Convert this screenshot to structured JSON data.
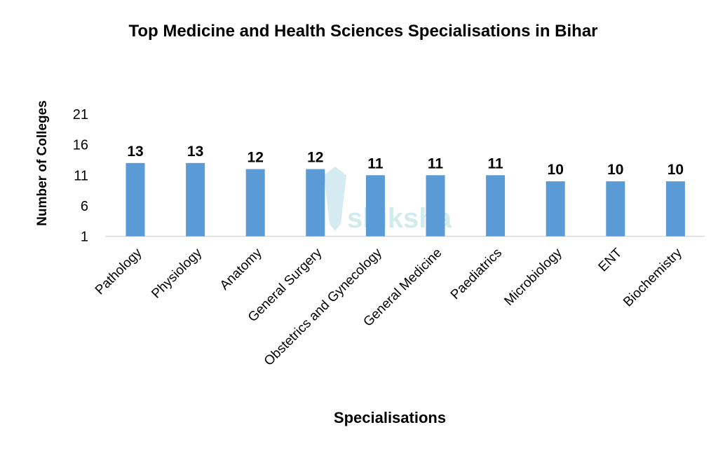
{
  "chart_data": {
    "type": "bar",
    "title": "Top Medicine and Health Sciences Specialisations in Bihar",
    "xlabel": "Specialisations",
    "ylabel": "Number of Colleges",
    "categories": [
      "Pathology",
      "Physiology",
      "Anatomy",
      "General Surgery",
      "Obstetrics and Gynecology",
      "General Medicine",
      "Paediatrics",
      "Microbiology",
      "ENT",
      "Biochemistry"
    ],
    "values": [
      13,
      13,
      12,
      12,
      11,
      11,
      11,
      10,
      10,
      10
    ],
    "y_ticks": [
      "1",
      "6",
      "11",
      "16",
      "21"
    ],
    "ylim": [
      1,
      21
    ],
    "grid": false,
    "data_labels": true,
    "bar_color": "#5B9BD5",
    "watermark": "shiksha"
  }
}
